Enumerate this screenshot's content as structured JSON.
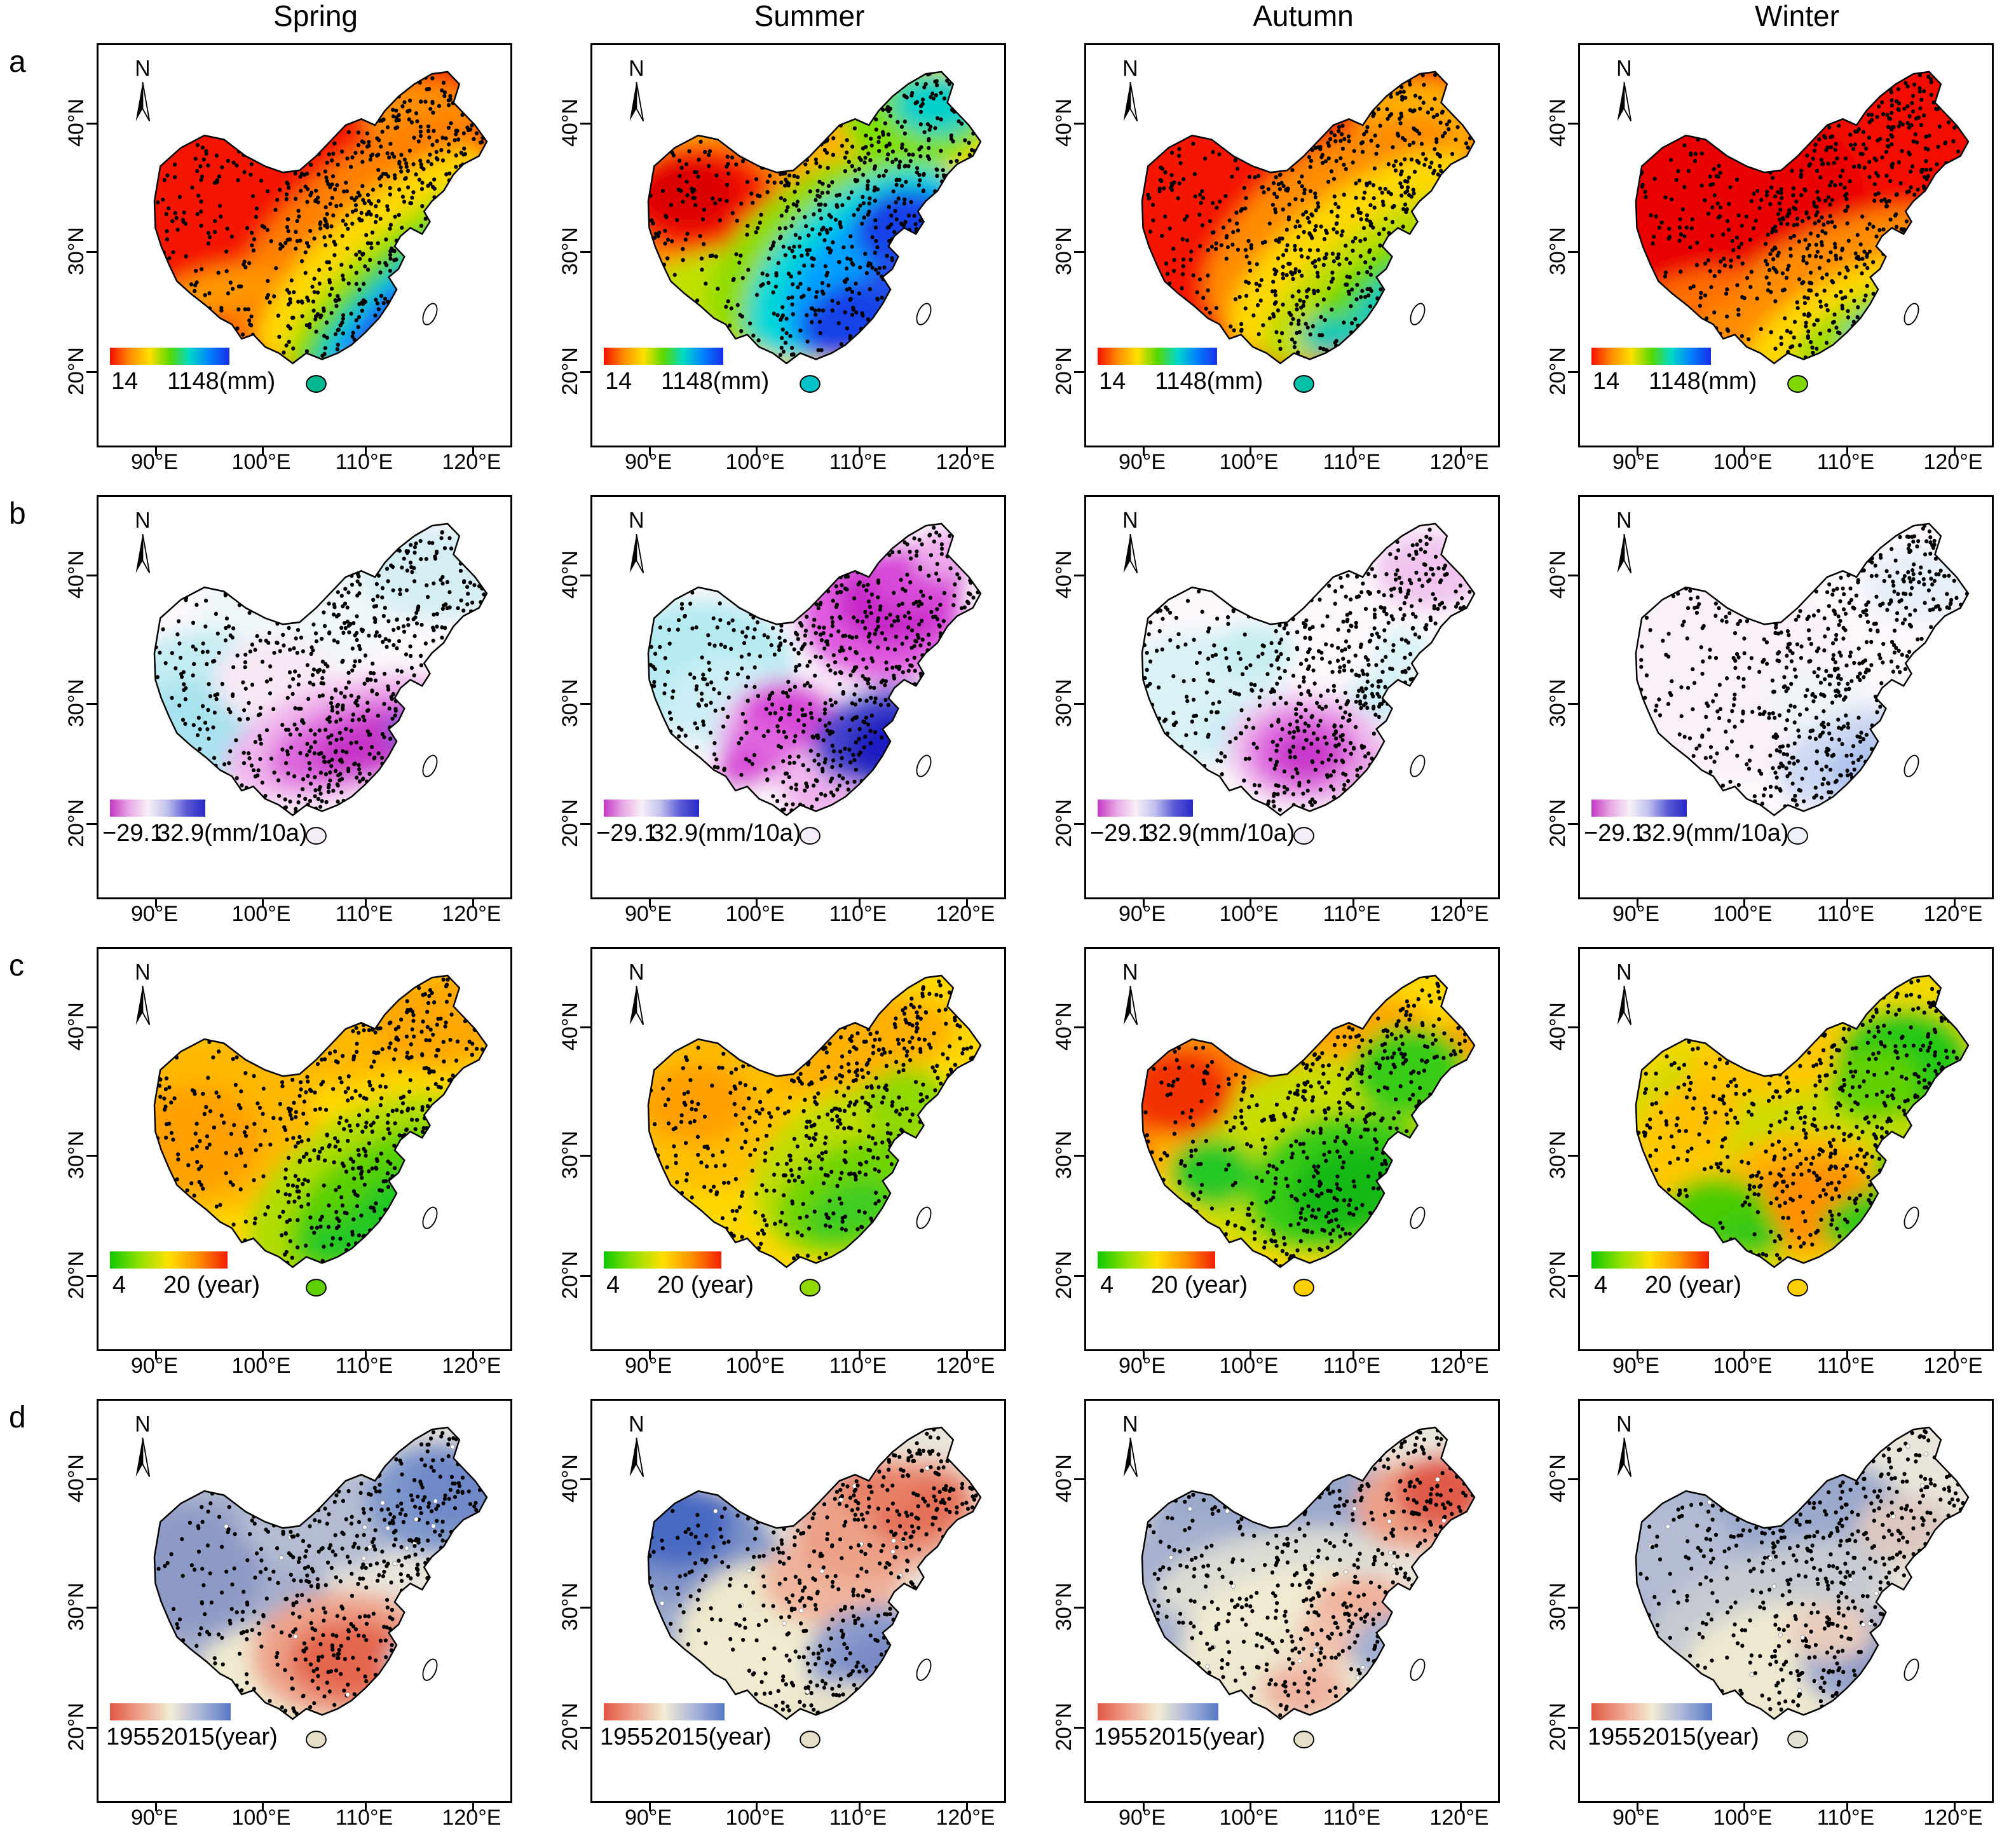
{
  "figure": {
    "columns": [
      "Spring",
      "Summer",
      "Autumn",
      "Winter"
    ],
    "north_label": "N",
    "axis": {
      "x_ticks": [
        "90°E",
        "100°E",
        "110°E",
        "120°E"
      ],
      "y_ticks": [
        "40°N",
        "30°N",
        "20°N"
      ]
    },
    "rows": [
      {
        "label": "a",
        "legend": {
          "min_label": "14",
          "max_label": "1148(mm)",
          "gradient": [
            "#f41000",
            "#ff8c00",
            "#ffe000",
            "#58d800",
            "#00d8c8",
            "#0080ff",
            "#1830e8"
          ]
        }
      },
      {
        "label": "b",
        "legend": {
          "min_label": "−29.1",
          "max_label": "32.9(mm/10a)",
          "gradient": [
            "#c238c2",
            "#e9a8e6",
            "#f8f0f6",
            "#c0c0ee",
            "#5b5bd6",
            "#2828c8"
          ]
        }
      },
      {
        "label": "c",
        "legend": {
          "min_label": "4",
          "max_label": "20 (year)",
          "gradient": [
            "#10c800",
            "#90e000",
            "#ffe000",
            "#ff9000",
            "#f22000"
          ]
        }
      },
      {
        "label": "d",
        "legend": {
          "min_label": "1955",
          "max_label": "2015(year)",
          "gradient": [
            "#e05844",
            "#efa28c",
            "#f2ecd4",
            "#aab6da",
            "#5878c4"
          ]
        }
      }
    ]
  }
}
